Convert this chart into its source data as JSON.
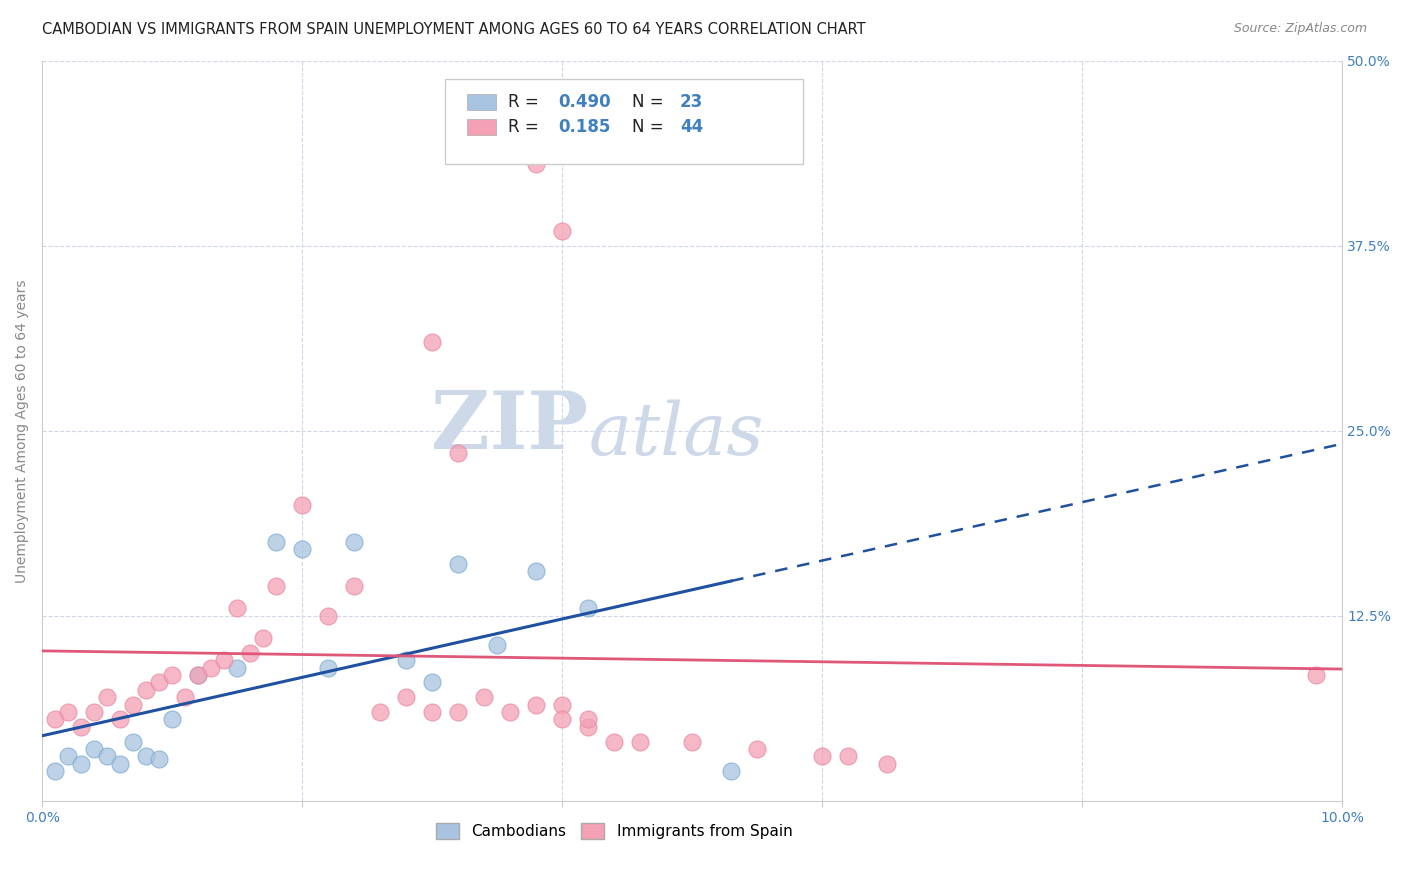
{
  "title": "CAMBODIAN VS IMMIGRANTS FROM SPAIN UNEMPLOYMENT AMONG AGES 60 TO 64 YEARS CORRELATION CHART",
  "source": "Source: ZipAtlas.com",
  "ylabel": "Unemployment Among Ages 60 to 64 years",
  "xlim": [
    0.0,
    0.1
  ],
  "ylim": [
    0.0,
    0.5
  ],
  "xticks": [
    0.0,
    0.02,
    0.04,
    0.06,
    0.08,
    0.1
  ],
  "xticklabels": [
    "0.0%",
    "",
    "",
    "",
    "",
    "10.0%"
  ],
  "yticks": [
    0.0,
    0.125,
    0.25,
    0.375,
    0.5
  ],
  "right_yticklabels": [
    "",
    "12.5%",
    "25.0%",
    "37.5%",
    "50.0%"
  ],
  "cambodian_color": "#a8c4e0",
  "cambodian_edge_color": "#7aaad0",
  "spain_color": "#f4a0b5",
  "spain_edge_color": "#e888a0",
  "cambodian_line_color": "#2050a0",
  "spain_line_color": "#e05878",
  "cambodian_R": 0.49,
  "cambodian_N": 23,
  "spain_R": 0.185,
  "spain_N": 44,
  "legend_color": "#4080c0",
  "watermark_zip": "ZIP",
  "watermark_atlas": "atlas",
  "watermark_color": "#cdd8e8",
  "cambodian_x": [
    0.001,
    0.002,
    0.003,
    0.004,
    0.005,
    0.006,
    0.007,
    0.008,
    0.009,
    0.01,
    0.012,
    0.015,
    0.018,
    0.02,
    0.022,
    0.024,
    0.028,
    0.03,
    0.032,
    0.035,
    0.038,
    0.042,
    0.053
  ],
  "cambodian_y": [
    0.02,
    0.03,
    0.025,
    0.035,
    0.03,
    0.025,
    0.04,
    0.03,
    0.028,
    0.055,
    0.085,
    0.09,
    0.175,
    0.17,
    0.09,
    0.175,
    0.095,
    0.08,
    0.16,
    0.105,
    0.155,
    0.13,
    0.02
  ],
  "spain_x": [
    0.001,
    0.002,
    0.003,
    0.004,
    0.005,
    0.006,
    0.007,
    0.008,
    0.009,
    0.01,
    0.011,
    0.012,
    0.013,
    0.014,
    0.015,
    0.016,
    0.017,
    0.018,
    0.02,
    0.022,
    0.024,
    0.026,
    0.028,
    0.03,
    0.032,
    0.034,
    0.036,
    0.038,
    0.04,
    0.042,
    0.044,
    0.046,
    0.05,
    0.055,
    0.06,
    0.062,
    0.065,
    0.03,
    0.032,
    0.098,
    0.04,
    0.042,
    0.038,
    0.04
  ],
  "spain_y": [
    0.055,
    0.06,
    0.05,
    0.06,
    0.07,
    0.055,
    0.065,
    0.075,
    0.08,
    0.085,
    0.07,
    0.085,
    0.09,
    0.095,
    0.13,
    0.1,
    0.11,
    0.145,
    0.2,
    0.125,
    0.145,
    0.06,
    0.07,
    0.06,
    0.06,
    0.07,
    0.06,
    0.065,
    0.065,
    0.05,
    0.04,
    0.04,
    0.04,
    0.035,
    0.03,
    0.03,
    0.025,
    0.31,
    0.235,
    0.085,
    0.055,
    0.055,
    0.43,
    0.385
  ],
  "background_color": "#ffffff",
  "grid_color": "#d0d8e8",
  "title_fontsize": 10.5,
  "axis_fontsize": 10,
  "tick_fontsize": 10,
  "legend_fontsize": 12
}
